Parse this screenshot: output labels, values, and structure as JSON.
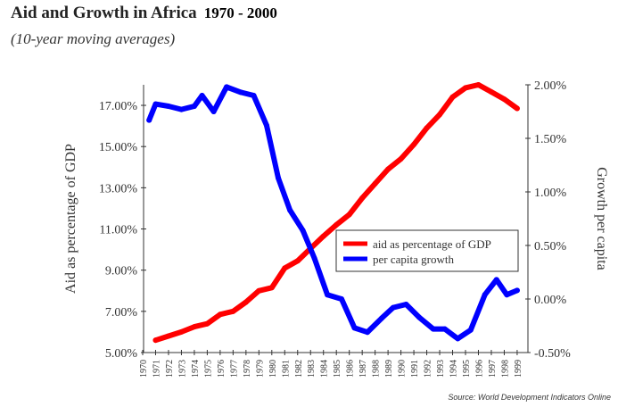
{
  "chart_data": {
    "type": "line",
    "title": "Aid and Growth in Africa",
    "title_years": "1970 - 2000",
    "subtitle": "(10-year moving averages)",
    "source": "Source: World Development Indicators Online",
    "ylabel_left": "Aid as percentage of GDP",
    "ylabel_right": "Growth per capita",
    "ylim_left": [
      5,
      18
    ],
    "ylim_right": [
      -0.5,
      2.0
    ],
    "yticks_left": [
      "5.00%",
      "7.00%",
      "9.00%",
      "11.00%",
      "13.00%",
      "15.00%",
      "17.00%"
    ],
    "yticks_right": [
      "-0.50%",
      "0.00%",
      "0.50%",
      "1.00%",
      "1.50%",
      "2.00%"
    ],
    "xticks": [
      "1970",
      "1971",
      "1972",
      "1973",
      "1974",
      "1975",
      "1976",
      "1977",
      "1978",
      "1979",
      "1980",
      "1981",
      "1982",
      "1983",
      "1984",
      "1985",
      "1986",
      "1987",
      "1988",
      "1989",
      "1990",
      "1991",
      "1992",
      "1993",
      "1994",
      "1995",
      "1996",
      "1997",
      "1998",
      "1999"
    ],
    "grid": false,
    "legend_placement": "center-right",
    "series": [
      {
        "name": "aid as percentage of GDP",
        "axis": "left",
        "color": "#ff0000",
        "x": [
          1971,
          1972,
          1973,
          1974,
          1975,
          1976,
          1977,
          1978,
          1979,
          1980,
          1981,
          1982,
          1983,
          1984,
          1985,
          1986,
          1987,
          1988,
          1989,
          1990,
          1991,
          1992,
          1993,
          1994,
          1995,
          1996,
          1997,
          1998,
          1999
        ],
        "values": [
          5.6,
          5.8,
          6.0,
          6.25,
          6.4,
          6.85,
          7.0,
          7.45,
          8.0,
          8.15,
          9.1,
          9.45,
          10.05,
          10.65,
          11.2,
          11.7,
          12.5,
          13.2,
          13.9,
          14.4,
          15.1,
          15.9,
          16.55,
          17.4,
          17.85,
          18.0,
          17.65,
          17.3,
          16.85
        ]
      },
      {
        "name": "per capita growth",
        "axis": "right",
        "color": "#0000ff",
        "x": [
          1970.5,
          1971,
          1972,
          1973,
          1974,
          1974.6,
          1975.5,
          1976.5,
          1977.6,
          1978.6,
          1979.6,
          1980.5,
          1981.4,
          1982.4,
          1983.3,
          1984.3,
          1985.4,
          1986.4,
          1987.4,
          1988.5,
          1989.4,
          1990.4,
          1991.4,
          1992.5,
          1993.4,
          1994.4,
          1995.4,
          1996.5,
          1997.4,
          1998.2,
          1999
        ],
        "values": [
          1.67,
          1.82,
          1.8,
          1.77,
          1.8,
          1.9,
          1.75,
          1.98,
          1.93,
          1.9,
          1.62,
          1.13,
          0.83,
          0.64,
          0.38,
          0.04,
          0.0,
          -0.27,
          -0.31,
          -0.18,
          -0.08,
          -0.05,
          -0.17,
          -0.28,
          -0.28,
          -0.37,
          -0.29,
          0.04,
          0.18,
          0.04,
          0.08
        ]
      }
    ]
  }
}
